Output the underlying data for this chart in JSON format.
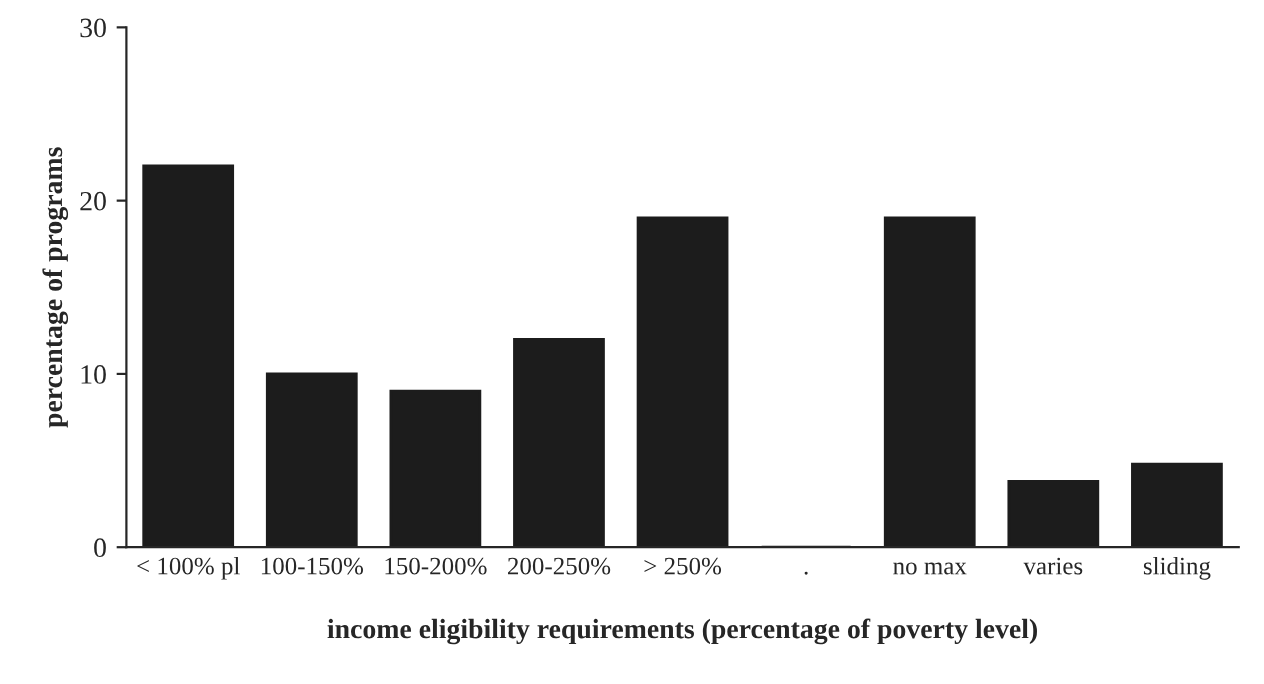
{
  "chart_data": {
    "type": "bar",
    "xlabel": "income eligibility requirements (percentage of poverty level)",
    "ylabel": "percentage of programs",
    "categories": [
      "< 100% pl",
      "100-150%",
      "150-200%",
      "200-250%",
      "> 250%",
      ".",
      "no max",
      "varies",
      "sliding"
    ],
    "values": [
      22,
      10,
      9,
      12,
      19,
      0,
      19,
      3.8,
      4.8
    ],
    "color": "#1c1c1c",
    "ylim": [
      0,
      30
    ],
    "yticks": [
      0,
      10,
      20,
      30
    ],
    "grid": false
  }
}
